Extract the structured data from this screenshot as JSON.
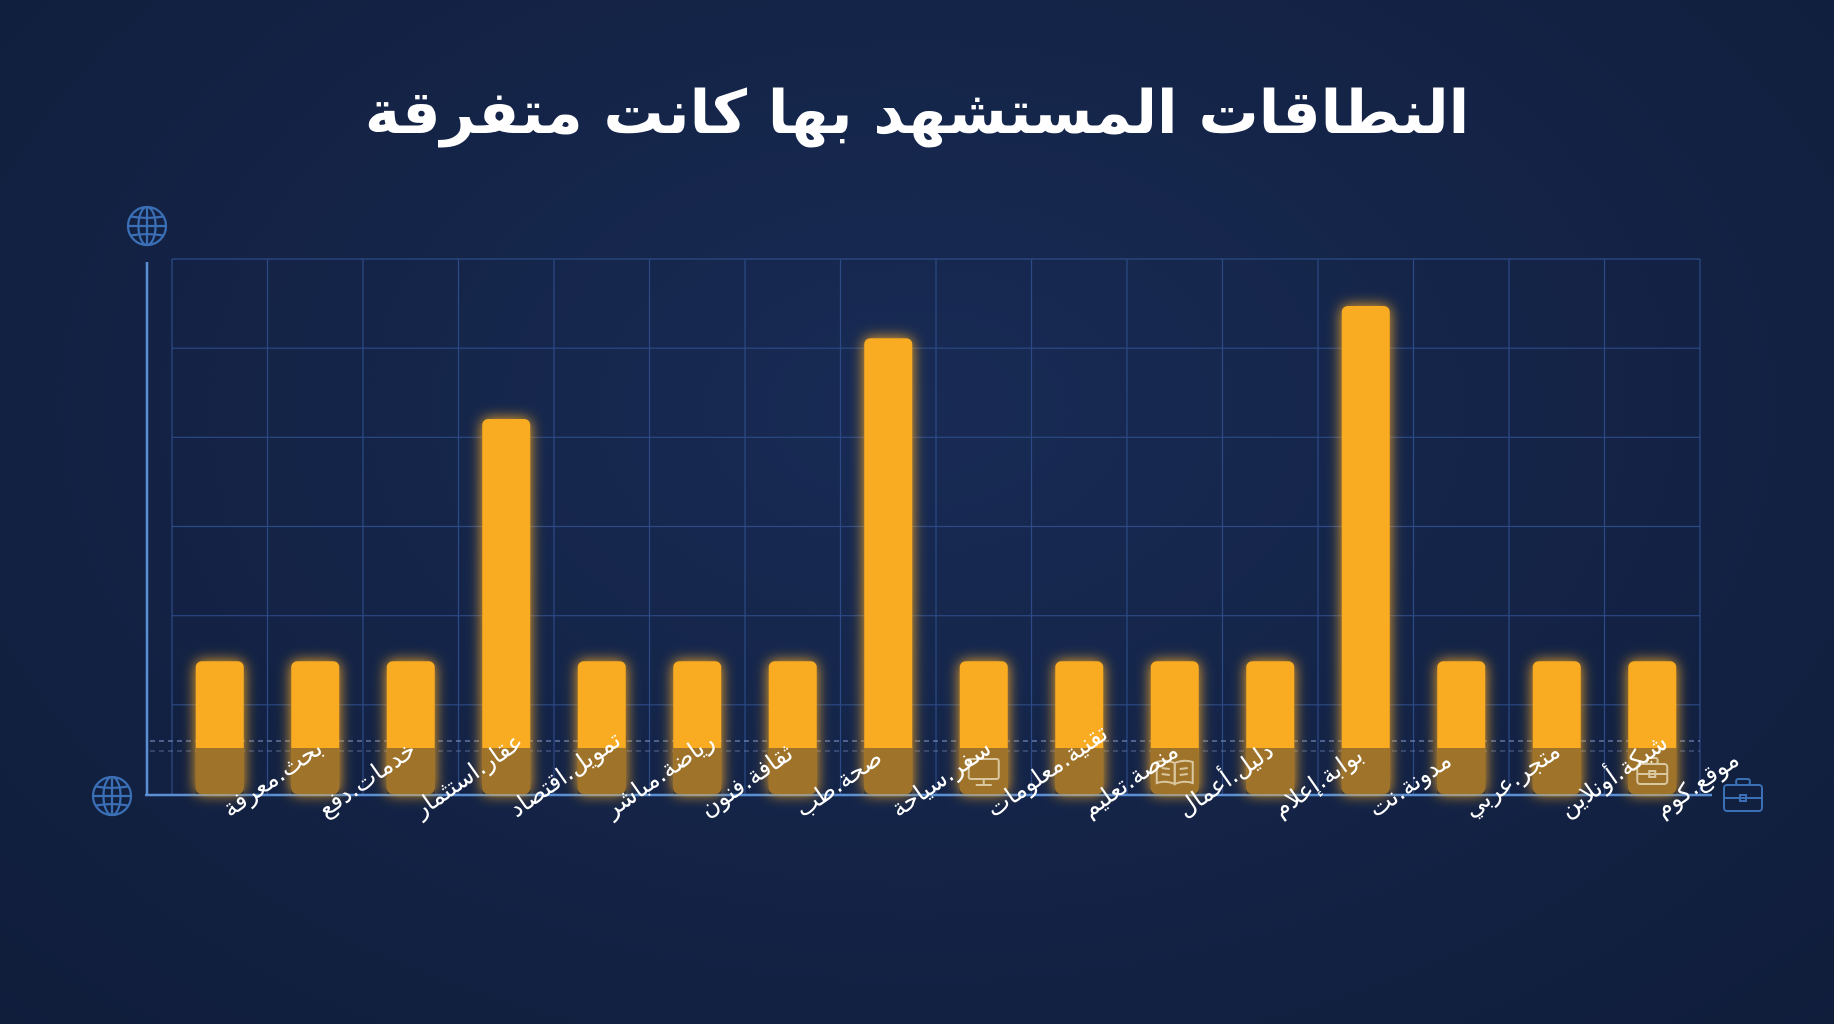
{
  "chart_data": {
    "type": "bar",
    "title": "النطاقات المستشهد بها كانت متفرقة",
    "categories": [
      "بحث.معرفة",
      "خدمات.دفع",
      "عقار.استثمار",
      "تمويل.اقتصاد",
      "رياضة.مباشر",
      "ثقافة.فنون",
      "صحة.طب",
      "سفر.سياحة",
      "تقنية.معلومات",
      "منصة.تعليم",
      "دليل.أعمال",
      "بوابة.إعلام",
      "مدونة.نت",
      "متجر.عربي",
      "شبكة.أونلاين",
      "موقع.كوم"
    ],
    "values": [
      1,
      1,
      1,
      4,
      1,
      1,
      1,
      5,
      1,
      1,
      1,
      1,
      5.4,
      1,
      1,
      1
    ],
    "ylim": [
      -0.3,
      5.7
    ],
    "grid": true,
    "colors": {
      "bar": "#f9ab24",
      "grid": "#2c4a86",
      "axis": "#5b8fd3",
      "icon": "#3b6fb6",
      "text": "#ffffff"
    },
    "bar_icons": {
      "8": "monitor-icon",
      "10": "book-icon",
      "15": "briefcase-icon"
    },
    "axis_icons": [
      "globe-icon",
      "globe-icon",
      "briefcase-icon"
    ]
  }
}
